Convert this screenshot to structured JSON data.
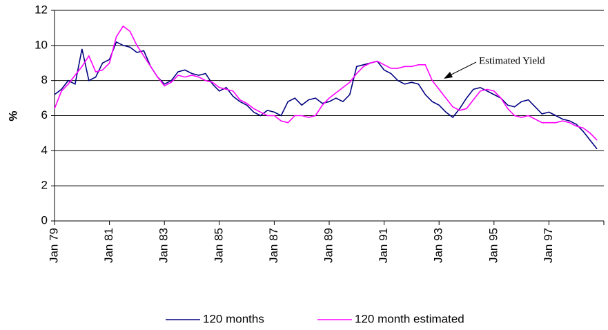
{
  "chart_data": {
    "type": "line",
    "y_label": "%",
    "annotation": "Estimated Yield",
    "x": [
      1979,
      1979.25,
      1979.5,
      1979.75,
      1980,
      1980.25,
      1980.5,
      1980.75,
      1981,
      1981.25,
      1981.5,
      1981.75,
      1982,
      1982.25,
      1982.5,
      1982.75,
      1983,
      1983.25,
      1983.5,
      1983.75,
      1984,
      1984.25,
      1984.5,
      1984.75,
      1985,
      1985.25,
      1985.5,
      1985.75,
      1986,
      1986.25,
      1986.5,
      1986.75,
      1987,
      1987.25,
      1987.5,
      1987.75,
      1988,
      1988.25,
      1988.5,
      1988.75,
      1989,
      1989.25,
      1989.5,
      1989.75,
      1990,
      1990.25,
      1990.5,
      1990.75,
      1991,
      1991.25,
      1991.5,
      1991.75,
      1992,
      1992.25,
      1992.5,
      1992.75,
      1993,
      1993.25,
      1993.5,
      1993.75,
      1994,
      1994.25,
      1994.5,
      1994.75,
      1995,
      1995.25,
      1995.5,
      1995.75,
      1996,
      1996.25,
      1996.5,
      1996.75,
      1997,
      1997.25,
      1997.5,
      1997.75,
      1998,
      1998.25,
      1998.5,
      1998.75
    ],
    "series": [
      {
        "name": "120 months",
        "color": "#000080",
        "values": [
          7.2,
          7.5,
          8.0,
          7.8,
          9.8,
          8.0,
          8.2,
          9.0,
          9.2,
          10.2,
          10.0,
          9.9,
          9.6,
          9.7,
          8.8,
          8.2,
          7.8,
          8.0,
          8.5,
          8.6,
          8.4,
          8.3,
          8.4,
          7.8,
          7.4,
          7.6,
          7.1,
          6.8,
          6.6,
          6.2,
          6.0,
          6.3,
          6.2,
          6.0,
          6.8,
          7.0,
          6.6,
          6.9,
          7.0,
          6.7,
          6.8,
          7.0,
          6.8,
          7.2,
          8.8,
          8.9,
          9.0,
          9.1,
          8.6,
          8.4,
          8.0,
          7.8,
          7.9,
          7.8,
          7.2,
          6.8,
          6.6,
          6.2,
          5.9,
          6.4,
          7.0,
          7.5,
          7.6,
          7.4,
          7.2,
          7.0,
          6.6,
          6.5,
          6.8,
          6.9,
          6.5,
          6.1,
          6.2,
          6.0,
          5.8,
          5.7,
          5.5,
          5.1,
          4.6,
          4.1
        ]
      },
      {
        "name": "120 month estimated",
        "color": "#ff00ff",
        "values": [
          6.4,
          7.4,
          7.8,
          8.3,
          8.8,
          9.4,
          8.5,
          8.6,
          9.0,
          10.5,
          11.1,
          10.8,
          10.0,
          9.4,
          8.8,
          8.2,
          7.7,
          7.9,
          8.3,
          8.2,
          8.3,
          8.2,
          8.0,
          7.9,
          7.6,
          7.5,
          7.4,
          6.9,
          6.7,
          6.4,
          6.2,
          6.0,
          6.0,
          5.7,
          5.6,
          6.0,
          6.0,
          5.9,
          6.0,
          6.6,
          7.0,
          7.3,
          7.6,
          7.9,
          8.4,
          8.8,
          9.0,
          9.1,
          8.9,
          8.7,
          8.7,
          8.8,
          8.8,
          8.9,
          8.9,
          8.0,
          7.5,
          7.0,
          6.5,
          6.3,
          6.4,
          6.9,
          7.4,
          7.5,
          7.4,
          7.0,
          6.4,
          6.0,
          5.9,
          6.0,
          5.8,
          5.6,
          5.6,
          5.6,
          5.7,
          5.6,
          5.4,
          5.3,
          5.0,
          4.6
        ]
      }
    ],
    "xlim": [
      1979,
      1999
    ],
    "xticks": [
      {
        "value": 1979,
        "label": "Jan 79"
      },
      {
        "value": 1981,
        "label": "Jan 81"
      },
      {
        "value": 1983,
        "label": "Jan 83"
      },
      {
        "value": 1985,
        "label": "Jan 85"
      },
      {
        "value": 1987,
        "label": "Jan 87"
      },
      {
        "value": 1989,
        "label": "Jan 89"
      },
      {
        "value": 1991,
        "label": "Jan 91"
      },
      {
        "value": 1993,
        "label": "Jan 93"
      },
      {
        "value": 1995,
        "label": "Jan 95"
      },
      {
        "value": 1997,
        "label": "Jan 97"
      }
    ],
    "ylim": [
      0,
      12
    ],
    "yticks": [
      0,
      2,
      4,
      6,
      8,
      10,
      12
    ],
    "grid": true,
    "legend": "bottom"
  }
}
